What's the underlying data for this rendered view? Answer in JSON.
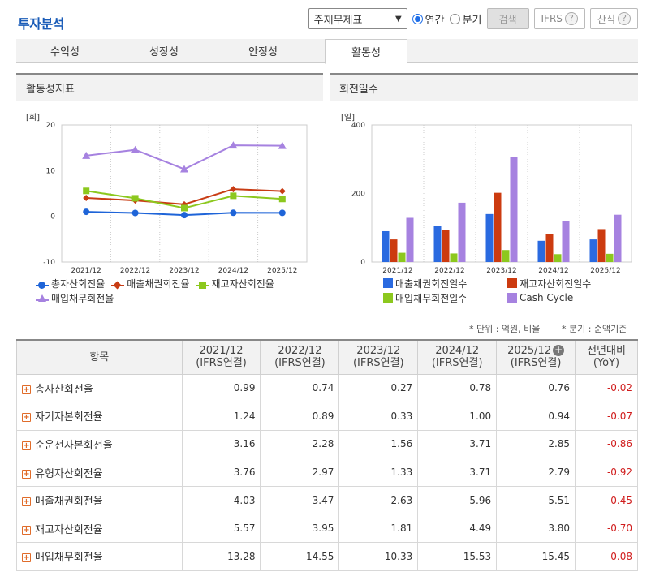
{
  "title": "투자분석",
  "controls": {
    "select_value": "주재무제표",
    "radio_annual": "연간",
    "radio_quarter": "분기",
    "search_label": "검색",
    "ifrs_label": "IFRS",
    "formula_label": "산식"
  },
  "tabs": [
    "수익성",
    "성장성",
    "안정성",
    "활동성"
  ],
  "active_tab": "활동성",
  "left_panel": {
    "title": "활동성지표",
    "unit": "[회]"
  },
  "right_panel": {
    "title": "회전일수",
    "unit": "[일]"
  },
  "notes": {
    "unit": "* 단위 : 억원, 비율",
    "quarter": "* 분기 : 순액기준"
  },
  "table": {
    "headers": {
      "item": "항목",
      "c1a": "2021/12",
      "c1b": "(IFRS연결)",
      "c2a": "2022/12",
      "c2b": "(IFRS연결)",
      "c3a": "2023/12",
      "c3b": "(IFRS연결)",
      "c4a": "2024/12",
      "c4b": "(IFRS연결)",
      "c5a": "2025/12",
      "c5b": "(IFRS연결)",
      "yoya": "전년대비",
      "yoyb": "(YoY)"
    },
    "rows": [
      {
        "name": "총자산회전율",
        "v": [
          "0.99",
          "0.74",
          "0.27",
          "0.78",
          "0.76"
        ],
        "yoy": "-0.02"
      },
      {
        "name": "자기자본회전율",
        "v": [
          "1.24",
          "0.89",
          "0.33",
          "1.00",
          "0.94"
        ],
        "yoy": "-0.07"
      },
      {
        "name": "순운전자본회전율",
        "v": [
          "3.16",
          "2.28",
          "1.56",
          "3.71",
          "2.85"
        ],
        "yoy": "-0.86"
      },
      {
        "name": "유형자산회전율",
        "v": [
          "3.76",
          "2.97",
          "1.33",
          "3.71",
          "2.79"
        ],
        "yoy": "-0.92"
      },
      {
        "name": "매출채권회전율",
        "v": [
          "4.03",
          "3.47",
          "2.63",
          "5.96",
          "5.51"
        ],
        "yoy": "-0.45"
      },
      {
        "name": "재고자산회전율",
        "v": [
          "5.57",
          "3.95",
          "1.81",
          "4.49",
          "3.80"
        ],
        "yoy": "-0.70"
      },
      {
        "name": "매입채무회전율",
        "v": [
          "13.28",
          "14.55",
          "10.33",
          "15.53",
          "15.45"
        ],
        "yoy": "-0.08"
      }
    ]
  },
  "chart_data": [
    {
      "type": "line",
      "categories": [
        "2021/12",
        "2022/12",
        "2023/12",
        "2024/12",
        "2025/12"
      ],
      "ylim": [
        -10,
        20
      ],
      "yticks": [
        -10,
        0,
        10,
        20
      ],
      "series": [
        {
          "name": "총자산회전율",
          "color": "#1e64d8",
          "marker": "circle",
          "values": [
            0.99,
            0.74,
            0.27,
            0.78,
            0.76
          ]
        },
        {
          "name": "매출채권회전율",
          "color": "#c83c14",
          "marker": "diamond",
          "values": [
            4.03,
            3.47,
            2.63,
            5.96,
            5.51
          ]
        },
        {
          "name": "재고자산회전율",
          "color": "#8cc81e",
          "marker": "square",
          "values": [
            5.57,
            3.95,
            1.81,
            4.49,
            3.8
          ]
        },
        {
          "name": "매입채무회전율",
          "color": "#a682e0",
          "marker": "triangle",
          "values": [
            13.28,
            14.55,
            10.33,
            15.53,
            15.45
          ]
        }
      ]
    },
    {
      "type": "bar",
      "categories": [
        "2021/12",
        "2022/12",
        "2023/12",
        "2024/12",
        "2025/12"
      ],
      "ylim": [
        0,
        400
      ],
      "yticks": [
        0,
        200,
        400
      ],
      "series": [
        {
          "name": "매출채권회전일수",
          "color": "#2a6ae0",
          "values": [
            90,
            105,
            140,
            62,
            66
          ]
        },
        {
          "name": "재고자산회전일수",
          "color": "#cc3b10",
          "values": [
            66,
            93,
            202,
            81,
            96
          ]
        },
        {
          "name": "매입채무회전일수",
          "color": "#8cc81e",
          "values": [
            27,
            25,
            35,
            23,
            24
          ]
        },
        {
          "name": "Cash Cycle",
          "color": "#a682e0",
          "values": [
            129,
            173,
            307,
            120,
            138
          ]
        }
      ]
    }
  ]
}
